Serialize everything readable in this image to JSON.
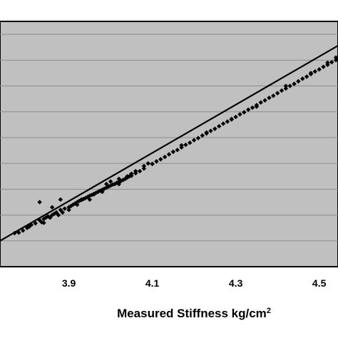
{
  "chart_data": {
    "type": "scatter",
    "title": "",
    "xlabel": "Measured Stiffness kg/cm",
    "xlabel_superscript": "2",
    "ylabel": "",
    "x_ticks": [
      "3.9",
      "4.1",
      "4.3",
      "4.5"
    ],
    "xlim": [
      3.735,
      4.545
    ],
    "ylim": [
      3.7,
      4.65
    ],
    "y_gridlines": [
      3.8,
      3.9,
      4.0,
      4.1,
      4.2,
      4.3,
      4.4,
      4.5,
      4.6
    ],
    "grid": true,
    "legend": "none",
    "colors": {
      "plot_background": "#c0c0c0",
      "marker": "#000000",
      "trendline": "#000000",
      "gridline": "#8c8c8c"
    },
    "trendline": {
      "type": "linear",
      "x": [
        3.735,
        4.545
      ],
      "y": [
        3.8,
        4.556
      ]
    },
    "series": [
      {
        "marker": "diamond",
        "points": [
          [
            3.77,
            3.83
          ],
          [
            3.78,
            3.832
          ],
          [
            3.79,
            3.84
          ],
          [
            3.8,
            3.85
          ],
          [
            3.805,
            3.855
          ],
          [
            3.81,
            3.862
          ],
          [
            3.82,
            3.868
          ],
          [
            3.83,
            3.88
          ],
          [
            3.835,
            3.872
          ],
          [
            3.84,
            3.885
          ],
          [
            3.845,
            3.89
          ],
          [
            3.85,
            3.895
          ],
          [
            3.855,
            3.89
          ],
          [
            3.86,
            3.9
          ],
          [
            3.865,
            3.905
          ],
          [
            3.87,
            3.91
          ],
          [
            3.875,
            3.9
          ],
          [
            3.88,
            3.92
          ],
          [
            3.885,
            3.91
          ],
          [
            3.89,
            3.925
          ],
          [
            3.9,
            3.93
          ],
          [
            3.905,
            3.935
          ],
          [
            3.91,
            3.94
          ],
          [
            3.915,
            3.945
          ],
          [
            3.92,
            3.95
          ],
          [
            3.925,
            3.955
          ],
          [
            3.93,
            3.958
          ],
          [
            3.935,
            3.962
          ],
          [
            3.94,
            3.966
          ],
          [
            3.945,
            3.97
          ],
          [
            3.95,
            3.975
          ],
          [
            3.955,
            3.978
          ],
          [
            3.96,
            3.982
          ],
          [
            3.965,
            3.986
          ],
          [
            3.97,
            3.99
          ],
          [
            3.975,
            3.994
          ],
          [
            3.98,
            3.998
          ],
          [
            3.985,
            4.002
          ],
          [
            3.99,
            4.006
          ],
          [
            3.995,
            4.01
          ],
          [
            4.0,
            4.014
          ],
          [
            4.005,
            4.018
          ],
          [
            4.01,
            4.02
          ],
          [
            4.015,
            4.025
          ],
          [
            4.02,
            4.028
          ],
          [
            4.025,
            4.032
          ],
          [
            4.03,
            4.036
          ],
          [
            4.035,
            4.04
          ],
          [
            4.04,
            4.045
          ],
          [
            4.045,
            4.05
          ],
          [
            4.05,
            4.052
          ],
          [
            4.06,
            4.062
          ],
          [
            4.07,
            4.07
          ],
          [
            4.08,
            4.08
          ],
          [
            4.1,
            4.098
          ],
          [
            4.11,
            4.108
          ],
          [
            4.12,
            4.116
          ],
          [
            4.13,
            4.125
          ],
          [
            4.14,
            4.135
          ],
          [
            4.15,
            4.145
          ],
          [
            4.16,
            4.152
          ],
          [
            4.17,
            4.162
          ],
          [
            4.18,
            4.172
          ],
          [
            4.19,
            4.18
          ],
          [
            4.2,
            4.19
          ],
          [
            4.21,
            4.198
          ],
          [
            4.22,
            4.208
          ],
          [
            4.23,
            4.216
          ],
          [
            4.24,
            4.226
          ],
          [
            4.25,
            4.234
          ],
          [
            4.26,
            4.244
          ],
          [
            4.27,
            4.254
          ],
          [
            4.28,
            4.262
          ],
          [
            4.29,
            4.272
          ],
          [
            4.3,
            4.28
          ],
          [
            4.31,
            4.29
          ],
          [
            4.32,
            4.298
          ],
          [
            4.33,
            4.308
          ],
          [
            4.34,
            4.316
          ],
          [
            4.35,
            4.326
          ],
          [
            4.36,
            4.336
          ],
          [
            4.37,
            4.344
          ],
          [
            4.38,
            4.354
          ],
          [
            4.39,
            4.362
          ],
          [
            4.4,
            4.372
          ],
          [
            4.41,
            4.382
          ],
          [
            4.42,
            4.39
          ],
          [
            4.43,
            4.4
          ],
          [
            4.44,
            4.408
          ],
          [
            4.45,
            4.418
          ],
          [
            4.46,
            4.428
          ],
          [
            4.47,
            4.436
          ],
          [
            4.48,
            4.446
          ],
          [
            4.49,
            4.456
          ],
          [
            4.5,
            4.464
          ],
          [
            4.51,
            4.474
          ],
          [
            4.52,
            4.482
          ],
          [
            4.53,
            4.492
          ],
          [
            4.54,
            4.5
          ],
          [
            4.545,
            4.505
          ],
          [
            3.83,
            3.95
          ],
          [
            3.86,
            3.93
          ],
          [
            3.88,
            3.96
          ],
          [
            3.92,
            3.94
          ],
          [
            3.95,
            3.96
          ],
          [
            3.98,
            3.99
          ],
          [
            4.0,
            4.03
          ],
          [
            4.02,
            4.04
          ],
          [
            4.05,
            4.06
          ],
          [
            4.08,
            4.09
          ],
          [
            3.84,
            3.87
          ],
          [
            3.87,
            3.91
          ],
          [
            3.9,
            3.92
          ],
          [
            3.93,
            3.96
          ],
          [
            3.96,
            3.98
          ],
          [
            3.99,
            4.02
          ],
          [
            4.02,
            4.02
          ],
          [
            4.04,
            4.05
          ],
          [
            4.06,
            4.07
          ],
          [
            4.09,
            4.1
          ],
          [
            4.17,
            4.17
          ],
          [
            4.23,
            4.22
          ],
          [
            4.29,
            4.27
          ],
          [
            4.35,
            4.32
          ],
          [
            4.42,
            4.4
          ],
          [
            4.48,
            4.45
          ],
          [
            4.52,
            4.49
          ],
          [
            4.54,
            4.51
          ]
        ]
      }
    ]
  }
}
